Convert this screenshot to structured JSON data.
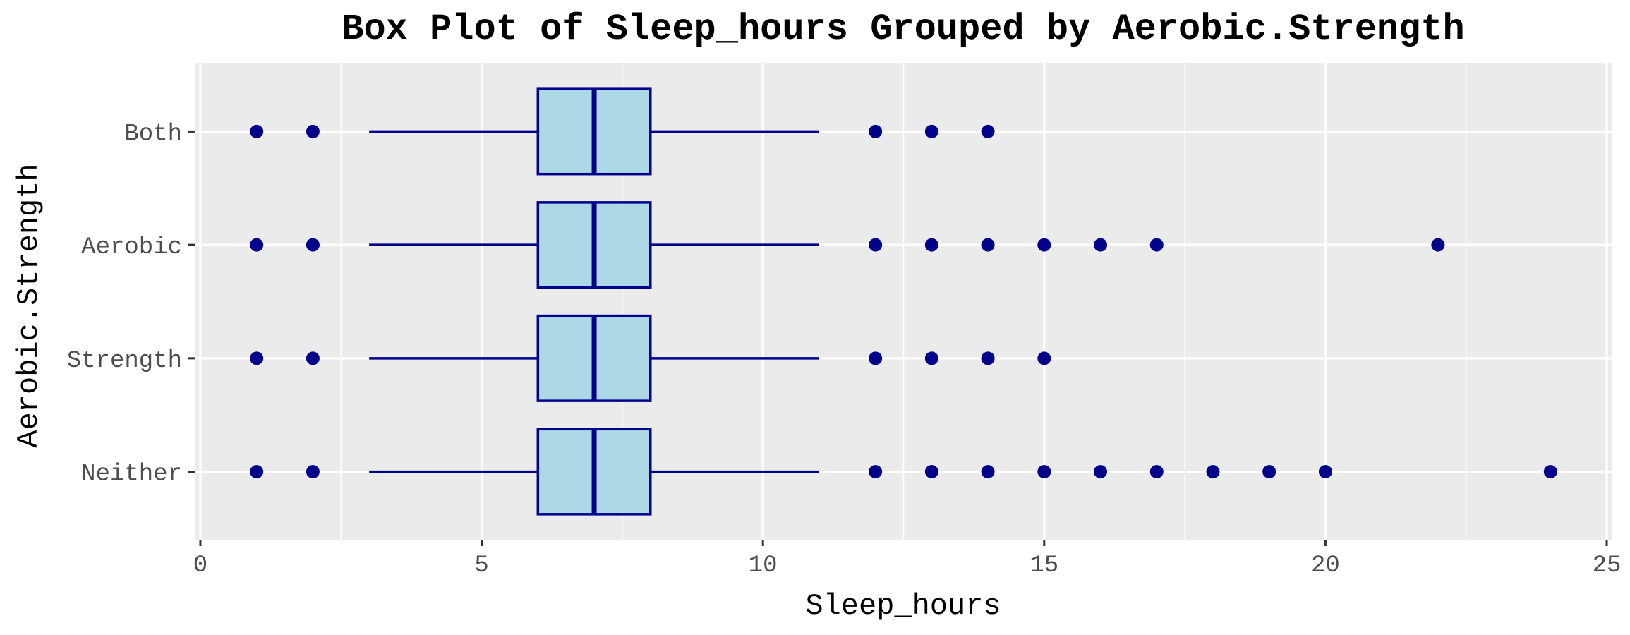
{
  "chart_data": {
    "type": "boxplot",
    "orientation": "horizontal",
    "title": "Box Plot of Sleep_hours Grouped by Aerobic.Strength",
    "xlabel": "Sleep_hours",
    "ylabel": "Aerobic.Strength",
    "xlim": [
      -0.1,
      25.1
    ],
    "x_ticks": [
      0,
      5,
      10,
      15,
      20,
      25
    ],
    "categories": [
      "Neither",
      "Strength",
      "Aerobic",
      "Both"
    ],
    "grid": true,
    "colors": {
      "panel_background": "#ebebeb",
      "grid": "#ffffff",
      "box_fill": "#add8e6",
      "box_line": "#00008b",
      "outlier": "#00008b",
      "axis_text": "#4d4d4d"
    },
    "series": [
      {
        "category": "Neither",
        "whisker_low": 3,
        "q1": 6,
        "median": 7,
        "q3": 8,
        "whisker_high": 11,
        "outliers": [
          1,
          2,
          12,
          13,
          14,
          15,
          16,
          17,
          18,
          19,
          20,
          24
        ]
      },
      {
        "category": "Strength",
        "whisker_low": 3,
        "q1": 6,
        "median": 7,
        "q3": 8,
        "whisker_high": 11,
        "outliers": [
          1,
          2,
          12,
          13,
          14,
          15
        ]
      },
      {
        "category": "Aerobic",
        "whisker_low": 3,
        "q1": 6,
        "median": 7,
        "q3": 8,
        "whisker_high": 11,
        "outliers": [
          1,
          2,
          12,
          13,
          14,
          15,
          16,
          17,
          22
        ]
      },
      {
        "category": "Both",
        "whisker_low": 3,
        "q1": 6,
        "median": 7,
        "q3": 8,
        "whisker_high": 11,
        "outliers": [
          1,
          2,
          12,
          13,
          14
        ]
      }
    ]
  }
}
